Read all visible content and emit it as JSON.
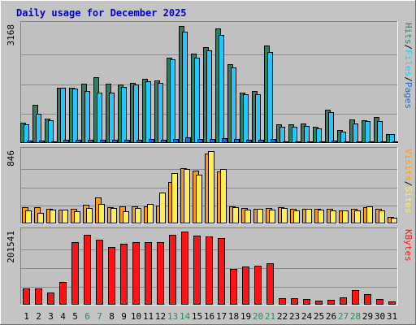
{
  "title": "Daily usage for December 2025",
  "colors": {
    "frame_bg": "#c4c4c4",
    "plot_bg": "#c0c0c0",
    "title_text": "#0000cc",
    "hits": "#2a8060",
    "files": "#21c8ff",
    "pages": "#2766cc",
    "visits": "#ff9a10",
    "sites": "#ffee55",
    "kbytes": "#ff1212",
    "weekend_day": "#2e8b57",
    "weekday_day": "#000000"
  },
  "chart_data": [
    {
      "type": "bar",
      "panel": "top",
      "y_max_label": "3168",
      "legend": [
        "Pages",
        "Files",
        "Hits"
      ],
      "legend_separator": "/",
      "x": [
        1,
        2,
        3,
        4,
        5,
        6,
        7,
        8,
        9,
        10,
        11,
        12,
        13,
        14,
        15,
        16,
        17,
        18,
        19,
        20,
        21,
        22,
        23,
        24,
        25,
        26,
        27,
        28,
        29,
        30,
        31
      ],
      "x_weekend": [
        6,
        7,
        13,
        14,
        20,
        21,
        27,
        28
      ],
      "series": [
        {
          "name": "Hits",
          "values": [
            650,
            1240,
            790,
            1800,
            1790,
            1940,
            2160,
            1940,
            1910,
            1970,
            2100,
            2050,
            2800,
            3830,
            2930,
            3150,
            3750,
            2580,
            1650,
            1680,
            3200,
            580,
            580,
            620,
            500,
            1080,
            390,
            760,
            720,
            840,
            280
          ]
        },
        {
          "name": "Files",
          "values": [
            600,
            950,
            720,
            1790,
            1760,
            1700,
            1630,
            1630,
            1820,
            1900,
            2000,
            1960,
            2730,
            3650,
            2790,
            3020,
            3540,
            2480,
            1570,
            1590,
            2970,
            520,
            510,
            530,
            450,
            990,
            360,
            630,
            690,
            710,
            260
          ]
        },
        {
          "name": "Pages",
          "values": [
            50,
            60,
            40,
            80,
            70,
            80,
            90,
            70,
            80,
            90,
            100,
            90,
            100,
            150,
            110,
            120,
            130,
            100,
            70,
            70,
            110,
            40,
            30,
            40,
            30,
            50,
            20,
            30,
            40,
            40,
            20
          ]
        }
      ]
    },
    {
      "type": "bar",
      "panel": "middle",
      "y_max_label": "846",
      "legend": [
        "Sites",
        "Visits"
      ],
      "legend_separator": "/",
      "x": [
        1,
        2,
        3,
        4,
        5,
        6,
        7,
        8,
        9,
        10,
        11,
        12,
        13,
        14,
        15,
        16,
        17,
        18,
        19,
        20,
        21,
        22,
        23,
        24,
        25,
        26,
        27,
        28,
        29,
        30,
        31
      ],
      "series": [
        {
          "name": "Visits",
          "values": [
            190,
            190,
            170,
            160,
            170,
            220,
            310,
            190,
            200,
            200,
            200,
            210,
            490,
            660,
            630,
            840,
            620,
            200,
            180,
            170,
            180,
            190,
            170,
            170,
            170,
            170,
            150,
            170,
            190,
            170,
            70
          ]
        },
        {
          "name": "Sites",
          "values": [
            150,
            120,
            160,
            160,
            140,
            180,
            230,
            180,
            140,
            180,
            230,
            360,
            600,
            650,
            580,
            870,
            650,
            190,
            160,
            170,
            160,
            180,
            150,
            170,
            160,
            150,
            150,
            150,
            200,
            150,
            60
          ]
        }
      ]
    },
    {
      "type": "bar",
      "panel": "bottom",
      "y_max_label": "201541",
      "legend": [
        "KBytes"
      ],
      "x": [
        1,
        2,
        3,
        4,
        5,
        6,
        7,
        8,
        9,
        10,
        11,
        12,
        13,
        14,
        15,
        16,
        17,
        18,
        19,
        20,
        21,
        22,
        23,
        24,
        25,
        26,
        27,
        28,
        29,
        30,
        31
      ],
      "series": [
        {
          "name": "KBytes",
          "values": [
            42000,
            42000,
            32000,
            61000,
            172000,
            193000,
            178000,
            158000,
            167000,
            173000,
            173000,
            171000,
            192000,
            202000,
            190000,
            188000,
            184000,
            98000,
            105000,
            106000,
            113000,
            16000,
            15000,
            13000,
            10000,
            11000,
            19000,
            38000,
            27000,
            13000,
            7000
          ]
        }
      ]
    }
  ]
}
